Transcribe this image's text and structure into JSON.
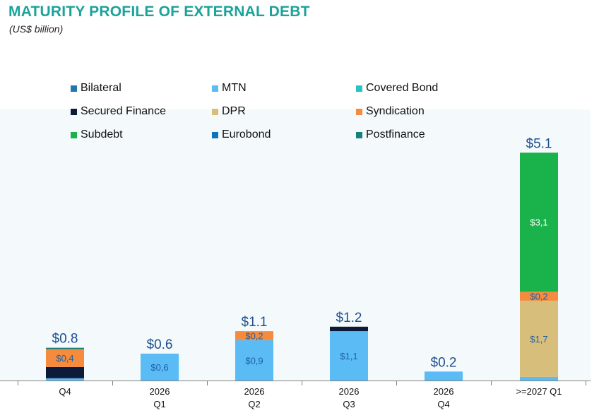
{
  "title": "MATURITY PROFILE OF EXTERNAL DEBT",
  "subtitle": "(US$ billion)",
  "chart_data": {
    "type": "bar",
    "stacked": true,
    "categories": [
      [
        "Q4",
        ""
      ],
      [
        "2026",
        "Q1"
      ],
      [
        "2026",
        "Q2"
      ],
      [
        "2026",
        "Q3"
      ],
      [
        "2026",
        "Q4"
      ],
      [
        ">=2027 Q1",
        ""
      ]
    ],
    "totals": [
      "$0.8",
      "$0.6",
      "$1.1",
      "$1.2",
      "$0.2",
      "$5.1"
    ],
    "legend": [
      {
        "name": "Bilateral",
        "color": "#1f77b4"
      },
      {
        "name": "MTN",
        "color": "#5bbcf5"
      },
      {
        "name": "Covered Bond",
        "color": "#27c4c4"
      },
      {
        "name": "Secured Finance",
        "color": "#0d1b3a"
      },
      {
        "name": "DPR",
        "color": "#d7bf7b"
      },
      {
        "name": "Syndication",
        "color": "#f58b3c"
      },
      {
        "name": "Subdebt",
        "color": "#1ab24b"
      },
      {
        "name": "Eurobond",
        "color": "#0a74c0"
      },
      {
        "name": "Postfinance",
        "color": "#16807a"
      }
    ],
    "series": [
      {
        "name": "MTN",
        "color": "#5bbcf5",
        "values": [
          0.05,
          0.6,
          0.9,
          1.1,
          0.2,
          0.08
        ],
        "labels": [
          "",
          "$0,6",
          "$0,9",
          "$1,1",
          "",
          ""
        ]
      },
      {
        "name": "Secured Finance",
        "color": "#0d1b3a",
        "values": [
          0.25,
          0,
          0,
          0.1,
          0,
          0
        ],
        "labels": [
          "",
          "",
          "",
          "",
          "",
          ""
        ]
      },
      {
        "name": "DPR",
        "color": "#d7bf7b",
        "values": [
          0,
          0,
          0,
          0,
          0,
          1.7
        ],
        "labels": [
          "",
          "",
          "",
          "",
          "",
          "$1,7"
        ]
      },
      {
        "name": "Syndication",
        "color": "#f58b3c",
        "values": [
          0.4,
          0,
          0.2,
          0,
          0,
          0.2
        ],
        "labels": [
          "$0,4",
          "",
          "$0,2",
          "",
          "",
          "$0,2"
        ]
      },
      {
        "name": "Subdebt",
        "color": "#1ab24b",
        "values": [
          0,
          0,
          0,
          0,
          0,
          3.1
        ],
        "labels": [
          "",
          "",
          "",
          "",
          "",
          "$3,1"
        ]
      },
      {
        "name": "Postfinance",
        "color": "#16807a",
        "values": [
          0.03,
          0,
          0,
          0,
          0,
          0
        ],
        "labels": [
          "",
          "",
          "",
          "",
          "",
          ""
        ]
      }
    ],
    "ylim": [
      0,
      5.1
    ],
    "grid": false,
    "legend_position": "top"
  }
}
